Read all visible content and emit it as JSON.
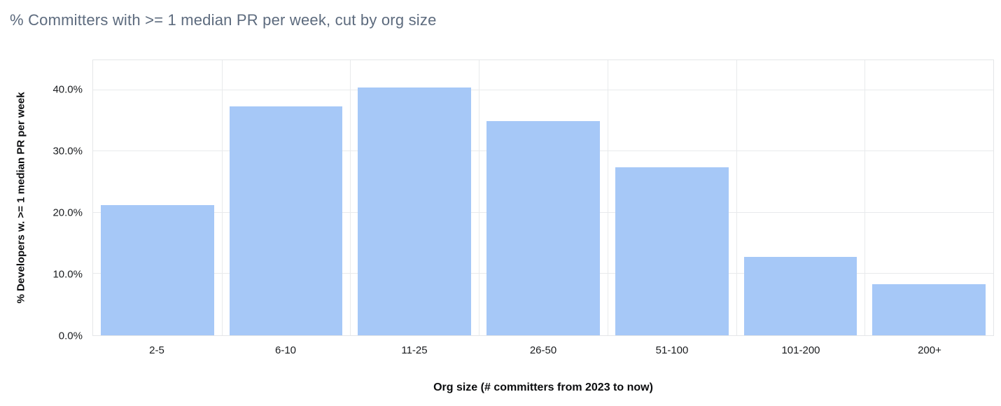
{
  "colors": {
    "bar": "#a6c8f7",
    "grid": "#e8eaec",
    "plot_border": "#e4e6e8",
    "title_text": "#5d6b7e",
    "tick_text": "#1a1c1f"
  },
  "chart_data": {
    "type": "bar",
    "title": "% Committers with >= 1 median PR per week, cut by org size",
    "xlabel": "Org size (# committers from 2023 to now)",
    "ylabel": "% Developers w. >= 1 median PR per week",
    "categories": [
      "2-5",
      "6-10",
      "11-25",
      "26-50",
      "51-100",
      "101-200",
      "200+"
    ],
    "values": [
      21.2,
      37.4,
      40.4,
      35.0,
      27.4,
      12.8,
      8.3
    ],
    "ylim": [
      0,
      44.9
    ],
    "yticks": [
      {
        "value": 0,
        "label": "0.0%"
      },
      {
        "value": 10,
        "label": "10.0%"
      },
      {
        "value": 20,
        "label": "20.0%"
      },
      {
        "value": 30,
        "label": "30.0%"
      },
      {
        "value": 40,
        "label": "40.0%"
      }
    ],
    "grid": true,
    "legend": "none"
  }
}
